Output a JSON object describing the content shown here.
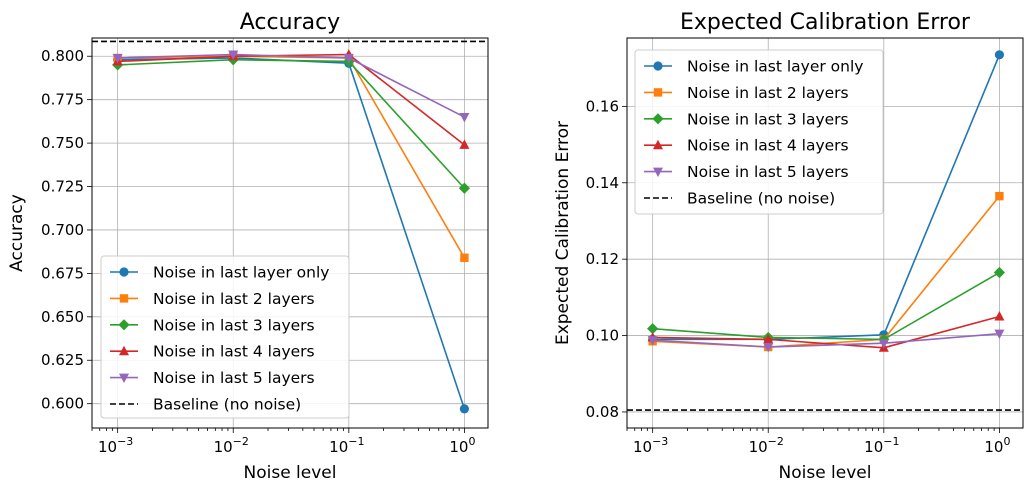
{
  "chart_data": [
    {
      "type": "line",
      "title": "Accuracy",
      "xlabel": "Noise level",
      "ylabel": "Accuracy",
      "xscale": "log",
      "x": [
        0.001,
        0.01,
        0.1,
        1
      ],
      "xlim": [
        0.0006,
        1.6
      ],
      "ylim": [
        0.586,
        0.8105
      ],
      "x_ticks": [
        {
          "value": 0.001,
          "base": "10",
          "exp": "−3"
        },
        {
          "value": 0.01,
          "base": "10",
          "exp": "−2"
        },
        {
          "value": 0.1,
          "base": "10",
          "exp": "−1"
        },
        {
          "value": 1,
          "base": "10",
          "exp": "0"
        }
      ],
      "y_ticks": [
        {
          "value": 0.6,
          "label": "0.600"
        },
        {
          "value": 0.625,
          "label": "0.625"
        },
        {
          "value": 0.65,
          "label": "0.650"
        },
        {
          "value": 0.675,
          "label": "0.675"
        },
        {
          "value": 0.7,
          "label": "0.700"
        },
        {
          "value": 0.725,
          "label": "0.725"
        },
        {
          "value": 0.75,
          "label": "0.750"
        },
        {
          "value": 0.775,
          "label": "0.775"
        },
        {
          "value": 0.8,
          "label": "0.800"
        }
      ],
      "grid": true,
      "legend_position": "lower-left",
      "series": [
        {
          "name": "Noise in last layer only",
          "color": "#1f77b4",
          "marker": "circle",
          "values": [
            0.798,
            0.799,
            0.796,
            0.597
          ]
        },
        {
          "name": "Noise in last 2 layers",
          "color": "#ff7f0e",
          "marker": "square",
          "values": [
            0.799,
            0.8,
            0.799,
            0.684
          ]
        },
        {
          "name": "Noise in last 3 layers",
          "color": "#2ca02c",
          "marker": "diamond",
          "values": [
            0.795,
            0.798,
            0.797,
            0.724
          ]
        },
        {
          "name": "Noise in last 4 layers",
          "color": "#d62728",
          "marker": "triangle-up",
          "values": [
            0.797,
            0.8,
            0.801,
            0.749
          ]
        },
        {
          "name": "Noise in last 5 layers",
          "color": "#9467bd",
          "marker": "triangle-down",
          "values": [
            0.799,
            0.801,
            0.799,
            0.765
          ]
        }
      ],
      "baseline": {
        "name": "Baseline (no noise)",
        "color": "#000000",
        "value": 0.8085
      }
    },
    {
      "type": "line",
      "title": "Expected Calibration Error",
      "xlabel": "Noise level",
      "ylabel": "Expected Calibration Error",
      "xscale": "log",
      "x": [
        0.001,
        0.01,
        0.1,
        1
      ],
      "xlim": [
        0.0006,
        1.6
      ],
      "ylim": [
        0.0758,
        0.1779
      ],
      "x_ticks": [
        {
          "value": 0.001,
          "base": "10",
          "exp": "−3"
        },
        {
          "value": 0.01,
          "base": "10",
          "exp": "−2"
        },
        {
          "value": 0.1,
          "base": "10",
          "exp": "−1"
        },
        {
          "value": 1,
          "base": "10",
          "exp": "0"
        }
      ],
      "y_ticks": [
        {
          "value": 0.08,
          "label": "0.08"
        },
        {
          "value": 0.1,
          "label": "0.10"
        },
        {
          "value": 0.12,
          "label": "0.12"
        },
        {
          "value": 0.14,
          "label": "0.14"
        },
        {
          "value": 0.16,
          "label": "0.16"
        }
      ],
      "grid": true,
      "legend_position": "upper-left",
      "series": [
        {
          "name": "Noise in last layer only",
          "color": "#1f77b4",
          "marker": "circle",
          "values": [
            0.099,
            0.099,
            0.1002,
            0.1735
          ]
        },
        {
          "name": "Noise in last 2 layers",
          "color": "#ff7f0e",
          "marker": "square",
          "values": [
            0.0985,
            0.097,
            0.099,
            0.1365
          ]
        },
        {
          "name": "Noise in last 3 layers",
          "color": "#2ca02c",
          "marker": "diamond",
          "values": [
            0.1018,
            0.0995,
            0.099,
            0.1165
          ]
        },
        {
          "name": "Noise in last 4 layers",
          "color": "#d62728",
          "marker": "triangle-up",
          "values": [
            0.0995,
            0.099,
            0.0968,
            0.105
          ]
        },
        {
          "name": "Noise in last 5 layers",
          "color": "#9467bd",
          "marker": "triangle-down",
          "values": [
            0.0988,
            0.097,
            0.098,
            0.1005
          ]
        }
      ],
      "baseline": {
        "name": "Baseline (no noise)",
        "color": "#000000",
        "value": 0.0805
      }
    }
  ]
}
